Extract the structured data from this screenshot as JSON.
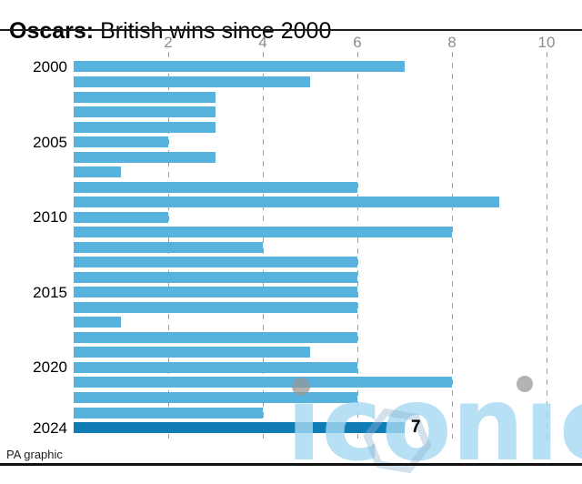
{
  "header": {
    "title_bold": "Oscars:",
    "title_rest": "British wins since 2000"
  },
  "footer": {
    "source": "PA graphic"
  },
  "watermark": {
    "text": "iconic"
  },
  "chart_data": {
    "type": "bar",
    "orientation": "horizontal",
    "title": "Oscars: British wins since 2000",
    "xlabel": "",
    "ylabel": "",
    "xlim": [
      0,
      10
    ],
    "x_ticks": [
      2,
      4,
      6,
      8,
      10
    ],
    "grid": "dashed-vertical",
    "legend": null,
    "categories": [
      2000,
      2001,
      2002,
      2003,
      2004,
      2005,
      2006,
      2007,
      2008,
      2009,
      2010,
      2011,
      2012,
      2013,
      2014,
      2015,
      2016,
      2017,
      2018,
      2019,
      2020,
      2021,
      2022,
      2023,
      2024
    ],
    "values": [
      7,
      5,
      3,
      3,
      3,
      2,
      3,
      1,
      6,
      9,
      2,
      8,
      4,
      6,
      6,
      6,
      6,
      1,
      6,
      5,
      6,
      8,
      6,
      4,
      7
    ],
    "year_axis_labels": [
      2000,
      2005,
      2010,
      2015,
      2020,
      2024
    ],
    "highlight_category": 2024,
    "highlight_value_label": "7",
    "colors": {
      "bar": "#57b3de",
      "highlight_bar": "#0f7cb5",
      "grid": "#9e9e9e",
      "tick_label": "#8d8d8d"
    }
  }
}
